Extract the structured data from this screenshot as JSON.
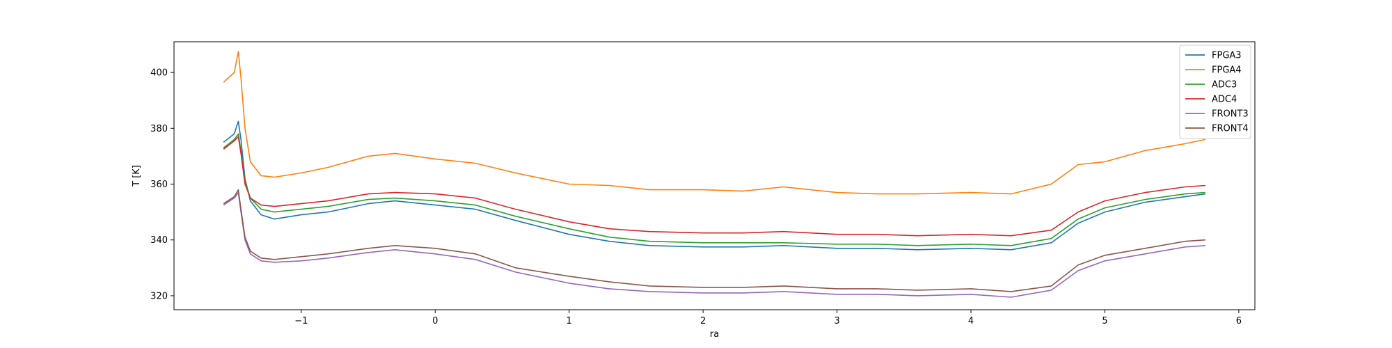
{
  "chart_data": {
    "type": "line",
    "title": "",
    "xlabel": "ra",
    "ylabel": "T [K]",
    "xlim": [
      -1.95,
      6.12
    ],
    "ylim": [
      315,
      411
    ],
    "xticks": [
      -1,
      0,
      1,
      2,
      3,
      4,
      5,
      6
    ],
    "xtick_labels": [
      "−1",
      "0",
      "1",
      "2",
      "3",
      "4",
      "5",
      "6"
    ],
    "yticks": [
      320,
      340,
      360,
      380,
      400
    ],
    "ytick_labels": [
      "320",
      "340",
      "360",
      "380",
      "400"
    ],
    "grid": false,
    "legend_position": "top-right",
    "x": [
      -1.58,
      -1.5,
      -1.47,
      -1.45,
      -1.42,
      -1.38,
      -1.3,
      -1.2,
      -1.0,
      -0.8,
      -0.5,
      -0.3,
      0.0,
      0.3,
      0.6,
      1.0,
      1.3,
      1.6,
      2.0,
      2.3,
      2.6,
      3.0,
      3.3,
      3.6,
      4.0,
      4.3,
      4.6,
      4.8,
      5.0,
      5.3,
      5.6,
      5.75
    ],
    "series": [
      {
        "name": "FPGA3",
        "color": "#1f77b4",
        "values": [
          375,
          378,
          382.5,
          376,
          362,
          354,
          349,
          347.5,
          349,
          350,
          353,
          354,
          352.5,
          351,
          347,
          342,
          339.5,
          338,
          337.5,
          337.5,
          338,
          337,
          337,
          336.5,
          337,
          336.5,
          339,
          346,
          350,
          353.5,
          355.5,
          356.5
        ]
      },
      {
        "name": "FPGA4",
        "color": "#ff7f0e",
        "values": [
          396.5,
          400,
          407.5,
          398,
          380,
          368,
          363,
          362.5,
          364,
          366,
          370,
          371,
          369,
          367.5,
          364,
          360,
          359.5,
          358,
          358,
          357.5,
          359,
          357,
          356.5,
          356.5,
          357,
          356.5,
          360,
          367,
          368,
          372,
          374.5,
          376
        ]
      },
      {
        "name": "ADC3",
        "color": "#2ca02c",
        "values": [
          373,
          376,
          378,
          372,
          361,
          355,
          351,
          350,
          351,
          352,
          354.5,
          355,
          354,
          352.5,
          348.5,
          344,
          341,
          339.5,
          339,
          339,
          339,
          338.5,
          338.5,
          338,
          338.5,
          338,
          340.5,
          347.5,
          351.5,
          354.5,
          356.5,
          357
        ]
      },
      {
        "name": "ADC4",
        "color": "#d62728",
        "values": [
          372.5,
          375.5,
          377,
          371,
          360,
          355,
          352.5,
          352,
          353,
          354,
          356.5,
          357,
          356.5,
          355,
          351,
          346.5,
          344,
          343,
          342.5,
          342.5,
          343,
          342,
          342,
          341.5,
          342,
          341.5,
          343.5,
          350,
          354,
          357,
          359,
          359.5
        ]
      },
      {
        "name": "FRONT3",
        "color": "#9467bd",
        "values": [
          352.5,
          355,
          357,
          350,
          340,
          335,
          332.5,
          332,
          332.5,
          333.5,
          335.5,
          336.5,
          335,
          333,
          328.5,
          324.5,
          322.5,
          321.5,
          321,
          321,
          321.5,
          320.5,
          320.5,
          320,
          320.5,
          319.5,
          322,
          329,
          332.5,
          335,
          337.5,
          338
        ]
      },
      {
        "name": "FRONT4",
        "color": "#8c564b",
        "values": [
          353,
          355.5,
          358,
          351,
          341,
          336,
          333.5,
          333,
          334,
          335,
          337,
          338,
          337,
          335,
          330,
          327,
          325,
          323.5,
          323,
          323,
          323.5,
          322.5,
          322.5,
          322,
          322.5,
          321.5,
          323.5,
          331,
          334.5,
          337,
          339.5,
          340
        ]
      }
    ]
  }
}
